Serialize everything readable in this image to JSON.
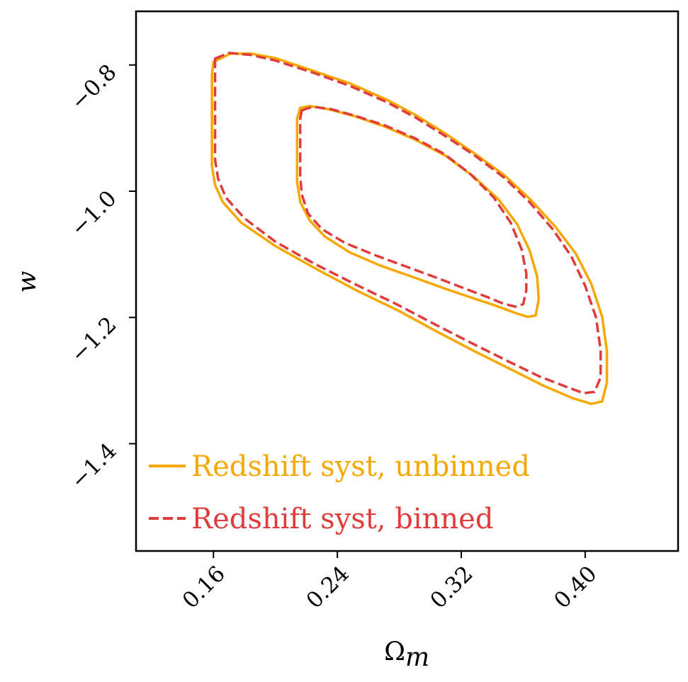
{
  "chart_data": {
    "type": "contour",
    "xlabel": "Ω",
    "xlabel_sub": "m",
    "ylabel": "w",
    "xlim": [
      0.11,
      0.46
    ],
    "ylim": [
      -1.57,
      -0.715
    ],
    "xticks": [
      0.16,
      0.24,
      0.32,
      0.4
    ],
    "xtick_labels": [
      "0.16",
      "0.24",
      "0.32",
      "0.40"
    ],
    "yticks": [
      -0.8,
      -1.0,
      -1.2,
      -1.4
    ],
    "ytick_labels": [
      "−0.8",
      "−1.0",
      "−1.2",
      "−1.4"
    ],
    "grid": false,
    "legend_position": "lower-left",
    "series": [
      {
        "name": "Redshift syst, unbinned",
        "color": "#f5a800",
        "linestyle": "solid",
        "contours": [
          {
            "level": "outer",
            "points": [
              [
                0.16,
                -0.795
              ],
              [
                0.171,
                -0.782
              ],
              [
                0.184,
                -0.782
              ],
              [
                0.2,
                -0.789
              ],
              [
                0.224,
                -0.809
              ],
              [
                0.248,
                -0.829
              ],
              [
                0.272,
                -0.855
              ],
              [
                0.291,
                -0.88
              ],
              [
                0.31,
                -0.909
              ],
              [
                0.329,
                -0.941
              ],
              [
                0.348,
                -0.975
              ],
              [
                0.365,
                -1.014
              ],
              [
                0.381,
                -1.057
              ],
              [
                0.394,
                -1.099
              ],
              [
                0.404,
                -1.147
              ],
              [
                0.411,
                -1.199
              ],
              [
                0.414,
                -1.253
              ],
              [
                0.414,
                -1.303
              ],
              [
                0.411,
                -1.333
              ],
              [
                0.404,
                -1.337
              ],
              [
                0.392,
                -1.328
              ],
              [
                0.373,
                -1.308
              ],
              [
                0.351,
                -1.281
              ],
              [
                0.329,
                -1.254
              ],
              [
                0.304,
                -1.222
              ],
              [
                0.28,
                -1.19
              ],
              [
                0.253,
                -1.158
              ],
              [
                0.227,
                -1.124
              ],
              [
                0.2,
                -1.087
              ],
              [
                0.178,
                -1.05
              ],
              [
                0.166,
                -1.017
              ],
              [
                0.161,
                -0.99
              ],
              [
                0.159,
                -0.96
              ],
              [
                0.159,
                -0.91
              ],
              [
                0.159,
                -0.87
              ],
              [
                0.159,
                -0.84
              ],
              [
                0.159,
                -0.815
              ],
              [
                0.16,
                -0.795
              ]
            ]
          },
          {
            "level": "inner",
            "points": [
              [
                0.216,
                -0.868
              ],
              [
                0.222,
                -0.865
              ],
              [
                0.234,
                -0.87
              ],
              [
                0.251,
                -0.881
              ],
              [
                0.27,
                -0.897
              ],
              [
                0.29,
                -0.918
              ],
              [
                0.31,
                -0.944
              ],
              [
                0.328,
                -0.977
              ],
              [
                0.344,
                -1.013
              ],
              [
                0.356,
                -1.052
              ],
              [
                0.364,
                -1.093
              ],
              [
                0.369,
                -1.135
              ],
              [
                0.37,
                -1.172
              ],
              [
                0.368,
                -1.197
              ],
              [
                0.363,
                -1.199
              ],
              [
                0.355,
                -1.193
              ],
              [
                0.343,
                -1.182
              ],
              [
                0.327,
                -1.169
              ],
              [
                0.309,
                -1.154
              ],
              [
                0.29,
                -1.137
              ],
              [
                0.268,
                -1.118
              ],
              [
                0.248,
                -1.097
              ],
              [
                0.232,
                -1.072
              ],
              [
                0.222,
                -1.046
              ],
              [
                0.216,
                -1.017
              ],
              [
                0.214,
                -0.985
              ],
              [
                0.214,
                -0.95
              ],
              [
                0.214,
                -0.915
              ],
              [
                0.214,
                -0.885
              ],
              [
                0.216,
                -0.868
              ]
            ]
          }
        ]
      },
      {
        "name": "Redshift syst, binned",
        "color": "#e03c3c",
        "linestyle": "dashed",
        "contours": [
          {
            "level": "outer",
            "points": [
              [
                0.161,
                -0.79
              ],
              [
                0.17,
                -0.781
              ],
              [
                0.184,
                -0.784
              ],
              [
                0.2,
                -0.793
              ],
              [
                0.224,
                -0.812
              ],
              [
                0.248,
                -0.833
              ],
              [
                0.272,
                -0.859
              ],
              [
                0.291,
                -0.884
              ],
              [
                0.31,
                -0.913
              ],
              [
                0.329,
                -0.944
              ],
              [
                0.348,
                -0.979
              ],
              [
                0.364,
                -1.017
              ],
              [
                0.379,
                -1.06
              ],
              [
                0.391,
                -1.103
              ],
              [
                0.4,
                -1.15
              ],
              [
                0.407,
                -1.2
              ],
              [
                0.41,
                -1.252
              ],
              [
                0.41,
                -1.295
              ],
              [
                0.406,
                -1.318
              ],
              [
                0.399,
                -1.32
              ],
              [
                0.388,
                -1.31
              ],
              [
                0.37,
                -1.293
              ],
              [
                0.349,
                -1.268
              ],
              [
                0.327,
                -1.241
              ],
              [
                0.303,
                -1.211
              ],
              [
                0.279,
                -1.18
              ],
              [
                0.252,
                -1.148
              ],
              [
                0.226,
                -1.116
              ],
              [
                0.2,
                -1.08
              ],
              [
                0.18,
                -1.043
              ],
              [
                0.168,
                -1.01
              ],
              [
                0.163,
                -0.98
              ],
              [
                0.161,
                -0.95
              ],
              [
                0.161,
                -0.9
              ],
              [
                0.161,
                -0.86
              ],
              [
                0.161,
                -0.83
              ],
              [
                0.161,
                -0.81
              ],
              [
                0.161,
                -0.79
              ]
            ]
          },
          {
            "level": "inner",
            "points": [
              [
                0.217,
                -0.872
              ],
              [
                0.224,
                -0.866
              ],
              [
                0.236,
                -0.87
              ],
              [
                0.252,
                -0.881
              ],
              [
                0.271,
                -0.896
              ],
              [
                0.29,
                -0.916
              ],
              [
                0.309,
                -0.941
              ],
              [
                0.326,
                -0.973
              ],
              [
                0.341,
                -1.01
              ],
              [
                0.352,
                -1.05
              ],
              [
                0.359,
                -1.092
              ],
              [
                0.362,
                -1.13
              ],
              [
                0.362,
                -1.157
              ],
              [
                0.36,
                -1.179
              ],
              [
                0.355,
                -1.183
              ],
              [
                0.347,
                -1.178
              ],
              [
                0.336,
                -1.167
              ],
              [
                0.321,
                -1.153
              ],
              [
                0.304,
                -1.137
              ],
              [
                0.285,
                -1.12
              ],
              [
                0.265,
                -1.102
              ],
              [
                0.245,
                -1.082
              ],
              [
                0.23,
                -1.06
              ],
              [
                0.221,
                -1.035
              ],
              [
                0.217,
                -1.005
              ],
              [
                0.216,
                -0.975
              ],
              [
                0.216,
                -0.94
              ],
              [
                0.216,
                -0.905
              ],
              [
                0.216,
                -0.885
              ],
              [
                0.217,
                -0.872
              ]
            ]
          }
        ]
      }
    ]
  }
}
